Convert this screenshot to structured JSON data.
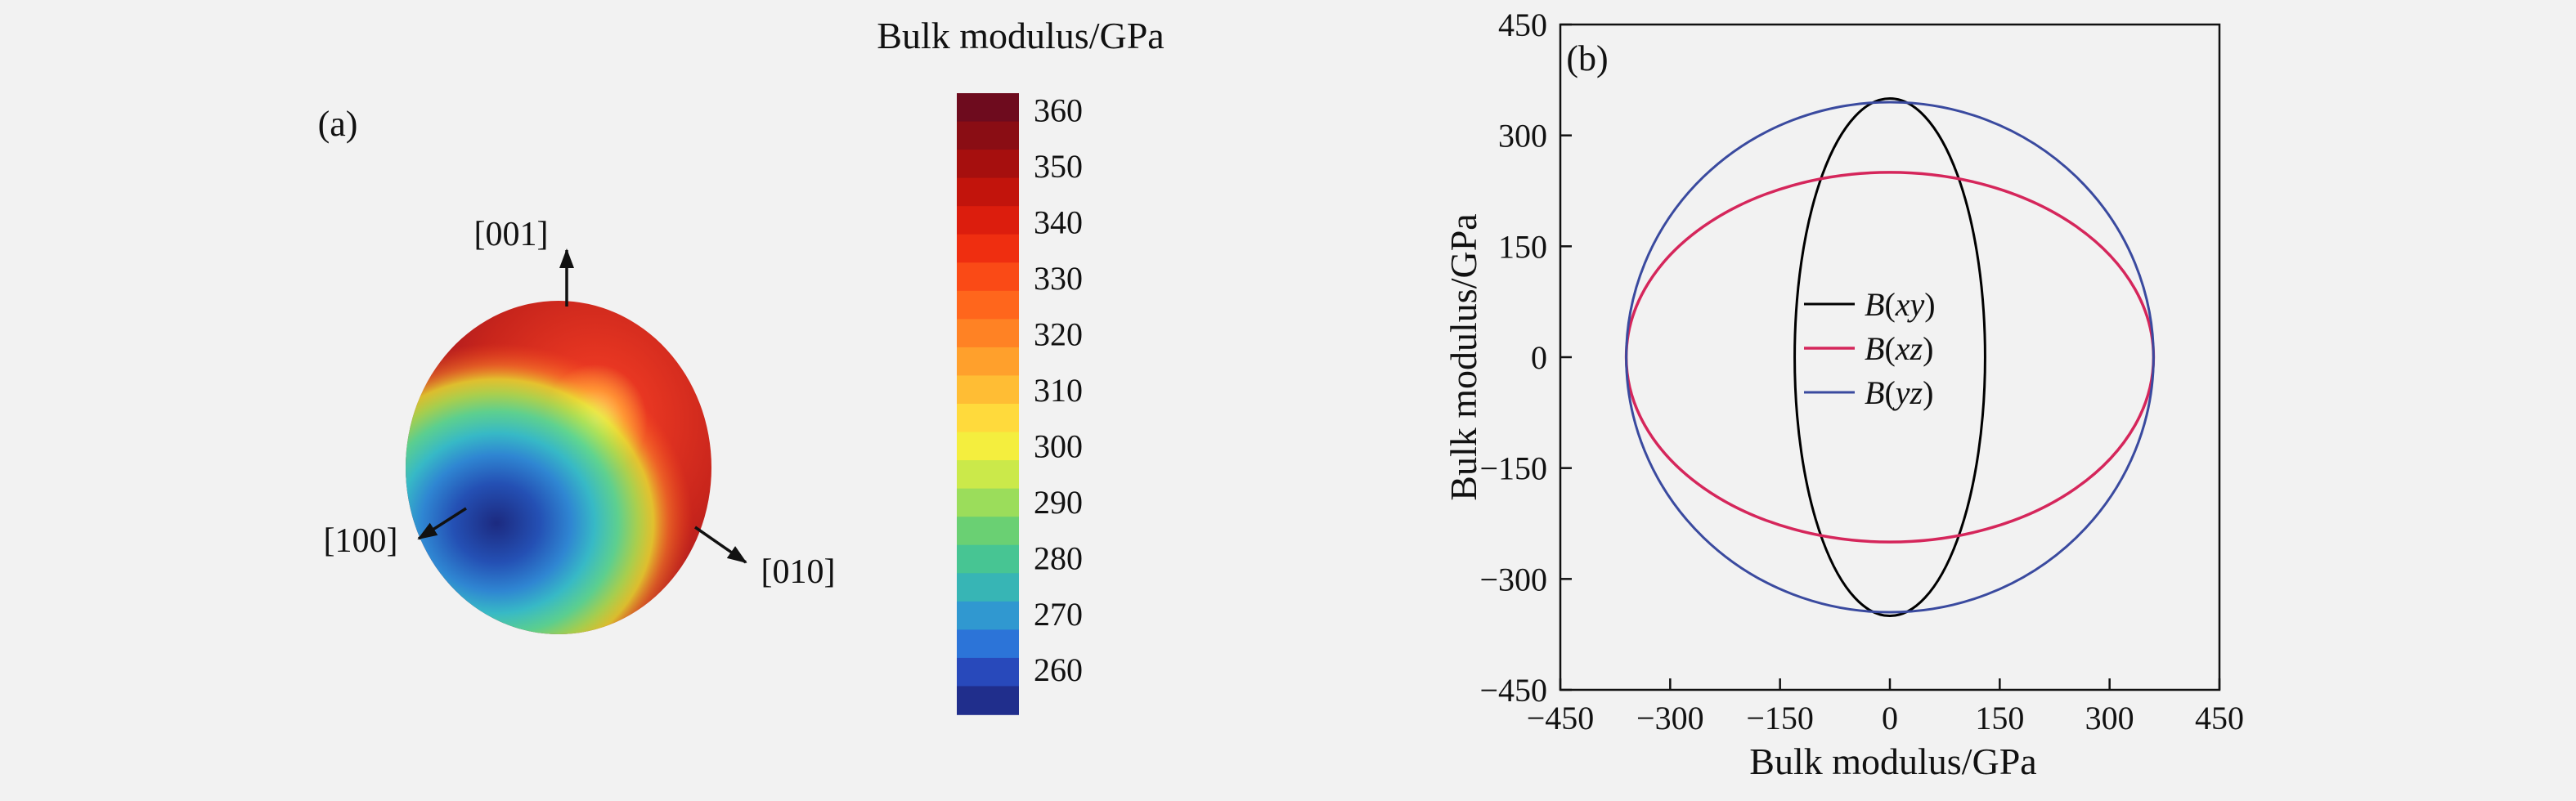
{
  "panels": {
    "a": {
      "label": "(a)"
    },
    "b": {
      "label": "(b)"
    }
  },
  "chart_data": [
    {
      "id": "panel-a-directional-surface",
      "type": "3d-directional-surface",
      "colorbar_title": "Bulk modulus/GPa",
      "direction_labels": [
        "[001]",
        "[100]",
        "[010]"
      ],
      "colorbar": {
        "ticks": [
          360,
          350,
          340,
          330,
          320,
          310,
          300,
          290,
          280,
          270,
          260
        ],
        "value_range": [
          252,
          363
        ],
        "band_colors_top_to_bottom": [
          "#6e0b1e",
          "#8a0d14",
          "#a60f0e",
          "#c2140c",
          "#dc1d0d",
          "#ef2e10",
          "#fa4a16",
          "#ff661c",
          "#ff8224",
          "#ffa02c",
          "#ffbd34",
          "#ffda3c",
          "#f4ee3e",
          "#cbe94a",
          "#9bdd5b",
          "#6ad073",
          "#47c593",
          "#37b5b5",
          "#3098d0",
          "#2c74d8",
          "#2849bb",
          "#202e8c"
        ]
      },
      "value_extremes": {
        "min_GPa": 255,
        "max_GPa": 363,
        "min_direction": "[100]"
      }
    },
    {
      "id": "panel-b-planar-projections",
      "type": "line",
      "xlabel": "Bulk modulus/GPa",
      "ylabel": "Bulk modulus/GPa",
      "xlim": [
        -450,
        450
      ],
      "ylim": [
        -450,
        450
      ],
      "xticks": [
        -450,
        -300,
        -150,
        0,
        150,
        300,
        450
      ],
      "yticks": [
        -450,
        -300,
        -150,
        0,
        150,
        300,
        450
      ],
      "grid": false,
      "legend": {
        "position": "center"
      },
      "series": [
        {
          "name": "B(xy)",
          "shape": "ellipse",
          "semi_axes_GPa": [
            130,
            350
          ],
          "color": "#000000",
          "linewidth": 3
        },
        {
          "name": "B(xz)",
          "shape": "ellipse",
          "semi_axes_GPa": [
            360,
            250
          ],
          "color": "#d5265b",
          "linewidth": 3.5
        },
        {
          "name": "B(yz)",
          "shape": "ellipse",
          "semi_axes_GPa": [
            360,
            345
          ],
          "color": "#3a4a9f",
          "linewidth": 3
        }
      ]
    }
  ]
}
